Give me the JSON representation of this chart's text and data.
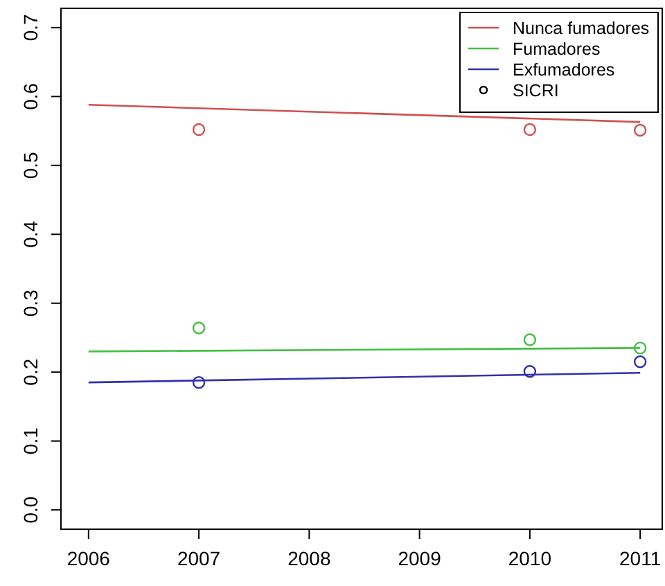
{
  "chart_data": {
    "type": "line",
    "xlim": [
      2005.75,
      2011.2
    ],
    "xticks": [
      2006,
      2007,
      2008,
      2009,
      2010,
      2011
    ],
    "ylim": [
      -0.028,
      0.728
    ],
    "yticks": [
      {
        "value": 0,
        "label": "0.0"
      },
      0.1,
      0.2,
      0.3,
      0.4,
      0.5,
      0.6,
      0.7
    ],
    "grid": false,
    "legend": "top right",
    "marker": "none",
    "line_style": "solid",
    "annotations": [
      "SICRI"
    ],
    "series": [
      {
        "name": "Nunca fumadores",
        "color": "#d05050",
        "x": [
          2006,
          2011
        ],
        "values": [
          0.588,
          0.563
        ]
      },
      {
        "name": "Fumadores",
        "color": "#40c040",
        "x": [
          2006,
          2011
        ],
        "values": [
          0.23,
          0.235
        ]
      },
      {
        "name": "Exfumadores",
        "color": "#3030b0",
        "x": [
          2006,
          2011
        ],
        "values": [
          0.185,
          0.199
        ]
      },
      {
        "type": "scatter",
        "marker": "circle",
        "color": "#d05050",
        "x": [
          2007,
          2010,
          2011
        ],
        "values": [
          0.552,
          0.552,
          0.551
        ]
      },
      {
        "type": "scatter",
        "marker": "circle",
        "color": "#40c040",
        "x": [
          2007,
          2010,
          2011
        ],
        "values": [
          0.264,
          0.247,
          0.235
        ]
      },
      {
        "type": "scatter",
        "marker": "circle",
        "color": "#3030b0",
        "x": [
          2007,
          2010,
          2011
        ],
        "values": [
          0.185,
          0.201,
          0.215
        ]
      }
    ]
  }
}
